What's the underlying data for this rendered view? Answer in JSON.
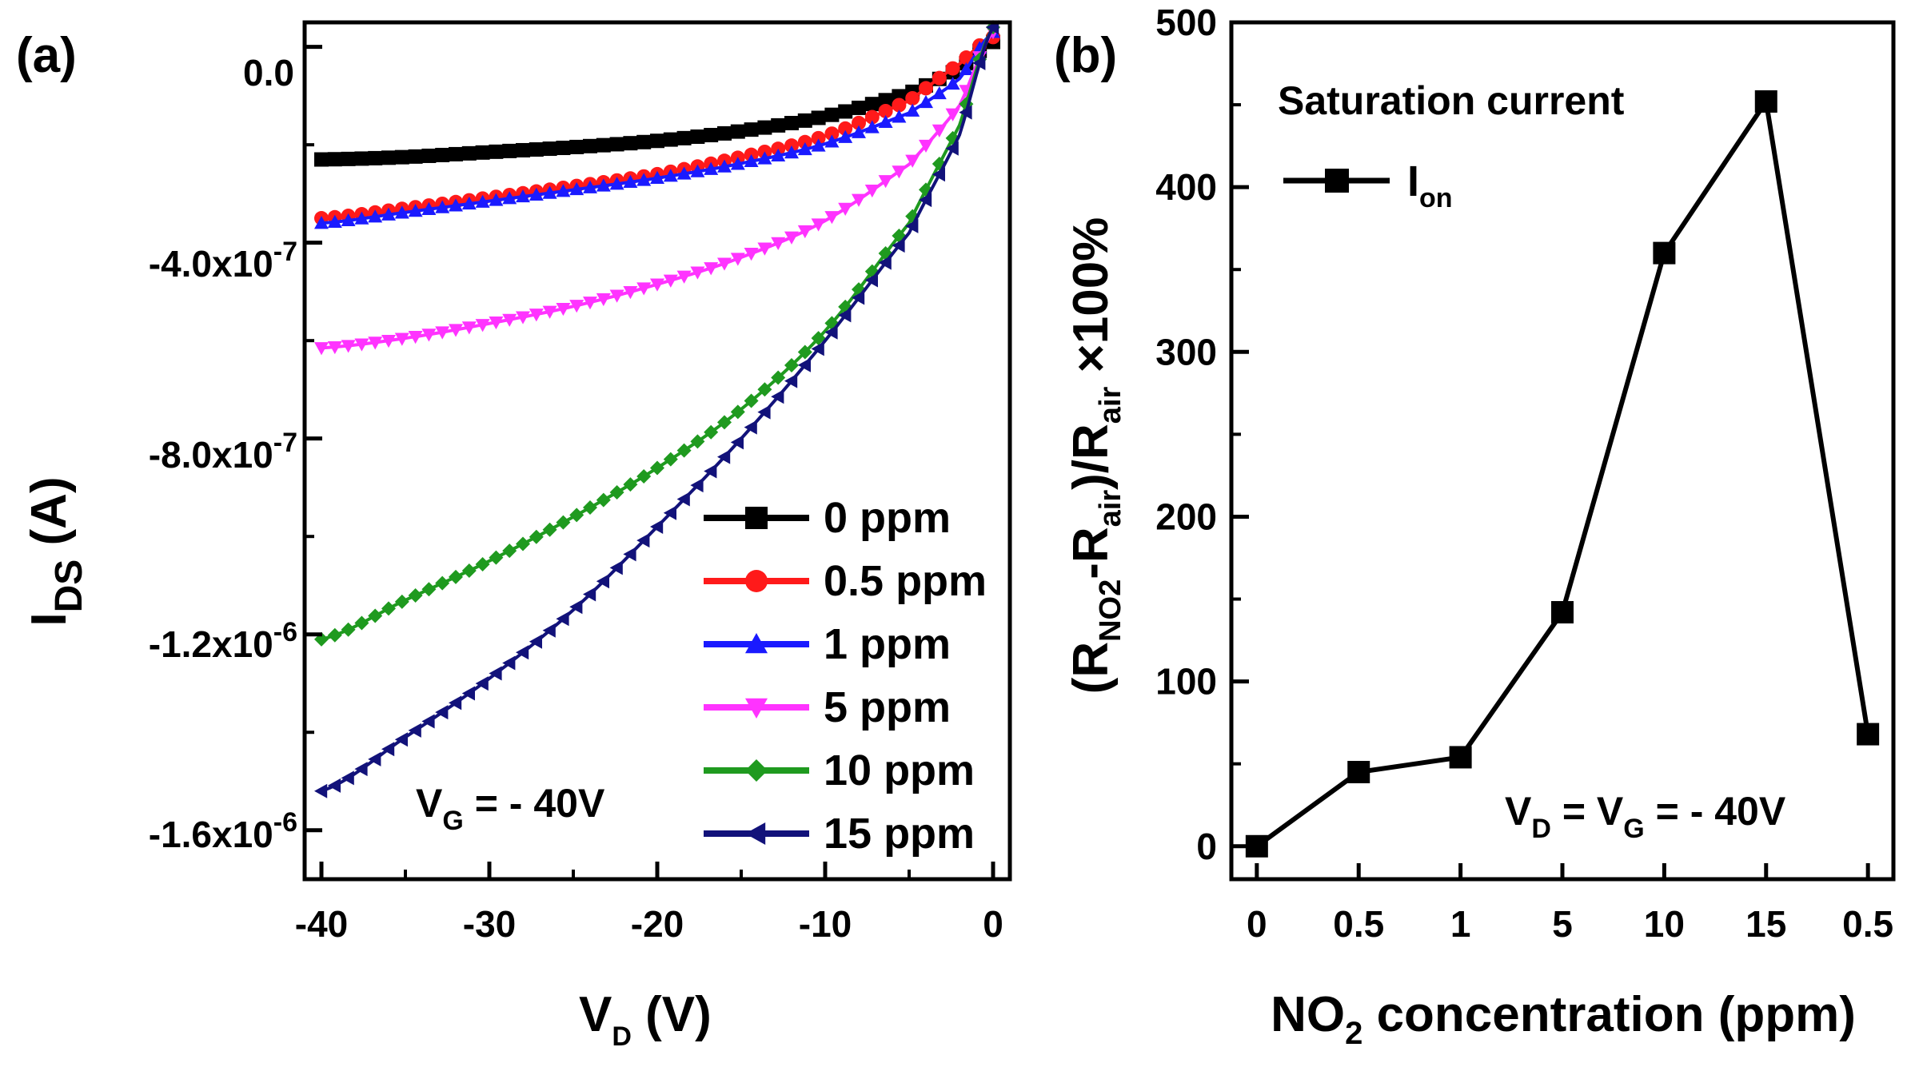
{
  "chart_data": [
    {
      "type": "line",
      "panel_label": "(a)",
      "xlabel": {
        "main": "V",
        "sub": "D",
        "tail": " (V)"
      },
      "ylabel": {
        "main": "I",
        "sub": "DS",
        "tail": " (A)"
      },
      "xlim": [
        -41,
        1
      ],
      "ylim": [
        -1.7e-06,
        5e-08
      ],
      "xticks": [
        -40,
        -30,
        -20,
        -10,
        0
      ],
      "xtick_labels": [
        "-40",
        "-30",
        "-20",
        "-10",
        "0"
      ],
      "yticks": [
        0,
        -4e-07,
        -8e-07,
        -1.2e-06,
        -1.6e-06
      ],
      "ytick_labels": [
        {
          "mant": "0.0",
          "exp": ""
        },
        {
          "mant": "-4.0x10",
          "exp": "-7"
        },
        {
          "mant": "-8.0x10",
          "exp": "-7"
        },
        {
          "mant": "-1.2x10",
          "exp": "-6"
        },
        {
          "mant": "-1.6x10",
          "exp": "-6"
        }
      ],
      "annotation": {
        "main": "V",
        "sub": "G",
        "tail": " = - 40V"
      },
      "legend_position": "lower-right",
      "series": [
        {
          "name": "0 ppm",
          "color": "#000000",
          "marker": "square",
          "x": [
            -40,
            -35,
            -30,
            -25,
            -20,
            -15,
            -10,
            -5,
            -2,
            0
          ],
          "y": [
            -2.3e-07,
            -2.25e-07,
            -2.15e-07,
            -2.05e-07,
            -1.92e-07,
            -1.72e-07,
            -1.42e-07,
            -9.5e-08,
            -4.5e-08,
            1e-08
          ]
        },
        {
          "name": "0.5 ppm",
          "color": "#ff1a1a",
          "marker": "circle",
          "x": [
            -40,
            -35,
            -30,
            -25,
            -20,
            -15,
            -10,
            -5,
            -2,
            0
          ],
          "y": [
            -3.5e-07,
            -3.3e-07,
            -3.08e-07,
            -2.85e-07,
            -2.6e-07,
            -2.25e-07,
            -1.82e-07,
            -1.1e-07,
            -3.5e-08,
            2e-08
          ]
        },
        {
          "name": "1 ppm",
          "color": "#1a1aff",
          "marker": "triangle-up",
          "x": [
            -40,
            -35,
            -30,
            -25,
            -20,
            -15,
            -10,
            -5,
            -2,
            0
          ],
          "y": [
            -3.6e-07,
            -3.38e-07,
            -3.15e-07,
            -2.92e-07,
            -2.68e-07,
            -2.38e-07,
            -1.98e-07,
            -1.35e-07,
            -6.5e-08,
            3e-08
          ]
        },
        {
          "name": "5 ppm",
          "color": "#ff33ff",
          "marker": "triangle-down",
          "x": [
            -40,
            -35,
            -30,
            -25,
            -20,
            -15,
            -10,
            -5,
            -2,
            0
          ],
          "y": [
            -6.15e-07,
            -5.95e-07,
            -5.65e-07,
            -5.3e-07,
            -4.85e-07,
            -4.3e-07,
            -3.55e-07,
            -2.4e-07,
            -1.2e-07,
            3e-08
          ]
        },
        {
          "name": "10 ppm",
          "color": "#1f9a1f",
          "marker": "diamond",
          "x": [
            -40,
            -35,
            -30,
            -25,
            -20,
            -15,
            -10,
            -5,
            -2,
            0
          ],
          "y": [
            -1.21e-06,
            -1.13e-06,
            -1.05e-06,
            -9.6e-07,
            -8.6e-07,
            -7.4e-07,
            -5.8e-07,
            -3.6e-07,
            -1.6e-07,
            4e-08
          ]
        },
        {
          "name": "15 ppm",
          "color": "#12127a",
          "marker": "triangle-left",
          "x": [
            -40,
            -35,
            -30,
            -25,
            -20,
            -15,
            -10,
            -5,
            -2,
            0
          ],
          "y": [
            -1.52e-06,
            -1.41e-06,
            -1.29e-06,
            -1.15e-06,
            -9.8e-07,
            -8e-07,
            -6e-07,
            -3.8e-07,
            -1.8e-07,
            4e-08
          ]
        }
      ]
    },
    {
      "type": "line",
      "panel_label": "(b)",
      "xlabel": {
        "main": "NO",
        "sub": "2",
        "tail": " concentration (ppm)"
      },
      "ylabel_parts": [
        "(R",
        "NO2",
        "-R",
        "air",
        ")/R",
        "air",
        " ×100%"
      ],
      "categories": [
        "0",
        "0.5",
        "1",
        "5",
        "10",
        "15",
        "0.5"
      ],
      "xlim": [
        -0.25,
        6.25
      ],
      "ylim": [
        -20,
        500
      ],
      "yticks": [
        0,
        100,
        200,
        300,
        400,
        500
      ],
      "ytick_labels": [
        "0",
        "100",
        "200",
        "300",
        "400",
        "500"
      ],
      "title": "Saturation current",
      "annotation": {
        "p1": "V",
        "s1": "D",
        "p2": " = V",
        "s2": "G",
        "p3": " = - 40V"
      },
      "series": [
        {
          "name_main": "I",
          "name_sub": "on",
          "color": "#000000",
          "marker": "square",
          "values": [
            0,
            45,
            54,
            142,
            360,
            452,
            68
          ]
        }
      ]
    }
  ]
}
